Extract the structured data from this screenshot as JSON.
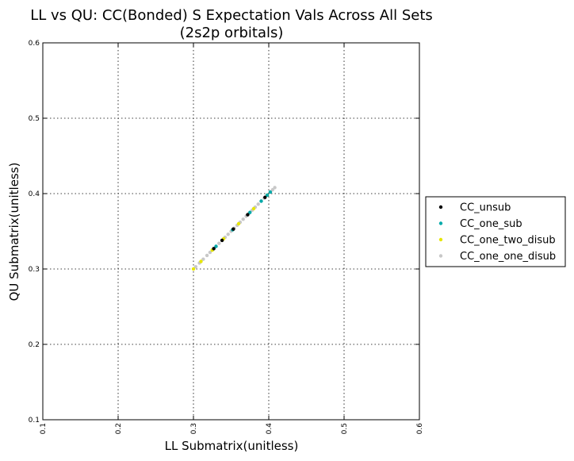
{
  "chart_data": {
    "type": "scatter",
    "title_lines": [
      "LL vs QU: CC(Bonded) S Expectation Vals Across All Sets",
      "(2s2p orbitals)"
    ],
    "xlabel": "LL Submatrix(unitless)",
    "ylabel": "QU Submatrix(unitless)",
    "xlim": [
      0.1,
      0.6
    ],
    "ylim": [
      0.1,
      0.6
    ],
    "xticks": [
      "0.1",
      "0.2",
      "0.3",
      "0.4",
      "0.5",
      "0.6"
    ],
    "yticks": [
      "0.1",
      "0.2",
      "0.3",
      "0.4",
      "0.5",
      "0.6"
    ],
    "grid": true,
    "legend_position": "outside-right",
    "series": [
      {
        "name": "CC_unsub",
        "color": "#000000",
        "points": [
          [
            0.327,
            0.327
          ],
          [
            0.338,
            0.338
          ],
          [
            0.353,
            0.353
          ],
          [
            0.372,
            0.372
          ],
          [
            0.395,
            0.395
          ]
        ]
      },
      {
        "name": "CC_one_sub",
        "color": "#00aaaa",
        "points": [
          [
            0.33,
            0.33
          ],
          [
            0.352,
            0.352
          ],
          [
            0.375,
            0.375
          ],
          [
            0.39,
            0.39
          ],
          [
            0.398,
            0.398
          ],
          [
            0.402,
            0.402
          ]
        ]
      },
      {
        "name": "CC_one_two_disub",
        "color": "#e6e600",
        "points": [
          [
            0.3,
            0.3
          ],
          [
            0.31,
            0.31
          ],
          [
            0.325,
            0.325
          ],
          [
            0.34,
            0.34
          ],
          [
            0.36,
            0.36
          ],
          [
            0.38,
            0.38
          ],
          [
            0.398,
            0.398
          ]
        ]
      },
      {
        "name": "CC_one_one_disub",
        "color": "#c8c8c8",
        "points": [
          [
            0.303,
            0.303
          ],
          [
            0.308,
            0.308
          ],
          [
            0.313,
            0.313
          ],
          [
            0.318,
            0.318
          ],
          [
            0.322,
            0.322
          ],
          [
            0.326,
            0.326
          ],
          [
            0.33,
            0.33
          ],
          [
            0.334,
            0.334
          ],
          [
            0.338,
            0.338
          ],
          [
            0.342,
            0.342
          ],
          [
            0.346,
            0.346
          ],
          [
            0.35,
            0.35
          ],
          [
            0.354,
            0.354
          ],
          [
            0.358,
            0.358
          ],
          [
            0.362,
            0.362
          ],
          [
            0.366,
            0.366
          ],
          [
            0.37,
            0.37
          ],
          [
            0.374,
            0.374
          ],
          [
            0.378,
            0.378
          ],
          [
            0.382,
            0.382
          ],
          [
            0.386,
            0.386
          ],
          [
            0.39,
            0.39
          ],
          [
            0.394,
            0.394
          ],
          [
            0.398,
            0.398
          ],
          [
            0.402,
            0.402
          ],
          [
            0.405,
            0.405
          ],
          [
            0.408,
            0.408
          ]
        ]
      }
    ]
  }
}
